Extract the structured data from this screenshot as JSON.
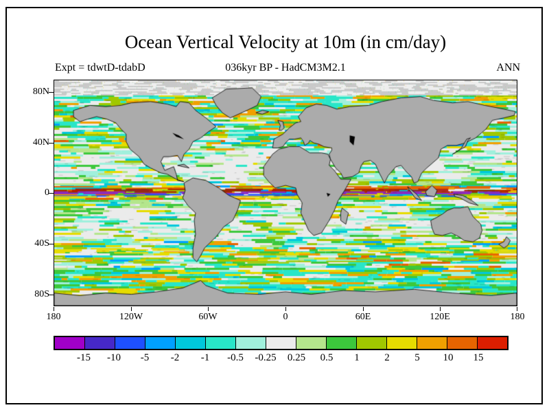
{
  "chart_data": {
    "type": "heatmap",
    "projection": "equirectangular",
    "title": "Ocean Vertical Velocity at 10m (in cm/day)",
    "experiment": "Expt = tdwtD-tdabD",
    "period": "036kyr BP - HadCM3M2.1",
    "season": "ANN",
    "units": "cm/day",
    "xlim": [
      -180,
      180
    ],
    "ylim": [
      -90,
      90
    ],
    "xticks": [
      "180",
      "120W",
      "60W",
      "0",
      "60E",
      "120E",
      "180"
    ],
    "yticks": [
      "80N",
      "40N",
      "0",
      "40S",
      "80S"
    ],
    "land_color": "#ababab",
    "colorbar": {
      "levels": [
        -15,
        -10,
        -5,
        -2,
        -1,
        -0.5,
        -0.25,
        0.25,
        0.5,
        1,
        2,
        5,
        10,
        15
      ],
      "labels": [
        "-15",
        "-10",
        "-5",
        "-2",
        "-1",
        "-0.5",
        "-0.25",
        "0.25",
        "0.5",
        "1",
        "2",
        "5",
        "10",
        "15"
      ],
      "colors": [
        "#a000c8",
        "#4628c8",
        "#1e50ff",
        "#00a0ff",
        "#00c8dc",
        "#28e6c8",
        "#a0f0dc",
        "#ebebeb",
        "#b4e68c",
        "#3cc83c",
        "#a0c800",
        "#e6dc00",
        "#f0a000",
        "#e66400",
        "#dc1e00"
      ]
    }
  }
}
